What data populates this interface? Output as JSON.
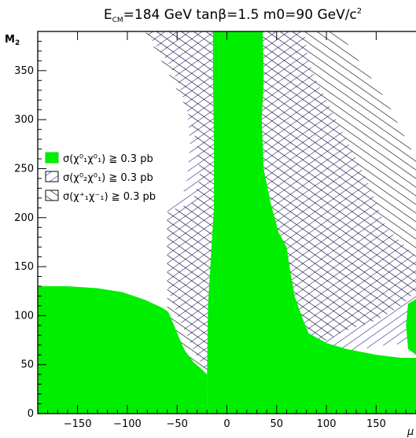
{
  "chart_data": {
    "type": "area",
    "title": "E_CM=184 GeV tanβ=1.5 m0=90 GeV/c²",
    "title_parts": {
      "e": "E",
      "cm_sub": "CM",
      "rest": "=184 GeV tanβ=1.5 m0=90 GeV/c",
      "sup": "2"
    },
    "ylabel": "M₂",
    "ylabel_parts": {
      "main": "M",
      "sub": "2"
    },
    "xlabel": "μ",
    "xlim": [
      -190,
      190
    ],
    "ylim": [
      0,
      390
    ],
    "x_ticks": [
      -150,
      -100,
      -50,
      0,
      50,
      100,
      150
    ],
    "x_tick_labels": [
      "−150",
      "−100",
      "−50",
      "0",
      "50",
      "100",
      "150"
    ],
    "y_ticks": [
      0,
      50,
      100,
      150,
      200,
      250,
      300,
      350
    ],
    "y_tick_labels": [
      "0",
      "50",
      "100",
      "150",
      "200",
      "250",
      "300",
      "350"
    ],
    "colors": {
      "green": "#00ee00",
      "blue": "#2020a0",
      "black": "#000000"
    },
    "legend": {
      "position": "left-middle",
      "entries": [
        {
          "label": "σ(χ⁰₁χ⁰₁) ≧ 0.3 pb",
          "style": "solid-green"
        },
        {
          "label": "σ(χ⁰₂χ⁰₁) ≧ 0.3 pb",
          "style": "hatched-blue"
        },
        {
          "label": "σ(χ⁺₁χ⁻₁) ≧ 0.3 pb",
          "style": "hatched-black"
        }
      ]
    },
    "regions": [
      {
        "name": "chi01-chi01",
        "style": "solid-green",
        "polygons": [
          [
            [
              -190,
              130
            ],
            [
              -160,
              130
            ],
            [
              -130,
              128
            ],
            [
              -105,
              124
            ],
            [
              -82,
              116
            ],
            [
              -65,
              108
            ],
            [
              -59,
              104
            ],
            [
              -53,
              90
            ],
            [
              -47,
              75
            ],
            [
              -42,
              64
            ],
            [
              -33,
              52
            ],
            [
              -25,
              45
            ],
            [
              -20,
              40
            ],
            [
              -20,
              0
            ],
            [
              -190,
              0
            ]
          ],
          [
            [
              -14,
              390
            ],
            [
              36,
              390
            ],
            [
              37,
              340
            ],
            [
              35,
              300
            ],
            [
              37,
              250
            ],
            [
              44,
              215
            ],
            [
              52,
              185
            ],
            [
              60,
              170
            ],
            [
              63,
              150
            ],
            [
              68,
              120
            ],
            [
              75,
              100
            ],
            [
              82,
              82
            ],
            [
              100,
              72
            ],
            [
              120,
              66
            ],
            [
              150,
              60
            ],
            [
              175,
              57
            ],
            [
              190,
              57
            ],
            [
              190,
              0
            ],
            [
              -20,
              0
            ],
            [
              -20,
              36
            ],
            [
              -19,
              110
            ],
            [
              -16,
              160
            ],
            [
              -13,
              210
            ],
            [
              -13,
              280
            ],
            [
              -14,
              340
            ]
          ],
          [
            [
              190,
              42
            ],
            [
              160,
              40
            ],
            [
              140,
              38
            ],
            [
              120,
              35
            ],
            [
              100,
              32
            ],
            [
              85,
              30
            ],
            [
              85,
              0
            ],
            [
              190,
              0
            ]
          ],
          [
            [
              190,
              60
            ],
            [
              182,
              66
            ],
            [
              180,
              90
            ],
            [
              182,
              112
            ],
            [
              190,
              117
            ]
          ]
        ]
      },
      {
        "name": "chi02-chi01",
        "style": "hatched-blue",
        "polygons": [
          [
            [
              -82,
              390
            ],
            [
              -60,
              360
            ],
            [
              -50,
              340
            ],
            [
              -40,
              310
            ],
            [
              -37,
              275
            ],
            [
              -40,
              240
            ],
            [
              -45,
              220
            ],
            [
              -60,
              210
            ],
            [
              -60,
              130
            ],
            [
              -50,
              100
            ],
            [
              -40,
              80
            ],
            [
              -33,
              63
            ],
            [
              -25,
              50
            ],
            [
              -20,
              42
            ],
            [
              -20,
              0
            ],
            [
              85,
              0
            ],
            [
              85,
              30
            ],
            [
              95,
              42
            ],
            [
              100,
              55
            ],
            [
              130,
              65
            ],
            [
              160,
              70
            ],
            [
              190,
              72
            ],
            [
              190,
              160
            ],
            [
              175,
              175
            ],
            [
              160,
              190
            ],
            [
              150,
              215
            ],
            [
              140,
              240
            ],
            [
              125,
              270
            ],
            [
              110,
              300
            ],
            [
              90,
              340
            ],
            [
              82,
              360
            ],
            [
              78,
              390
            ]
          ]
        ]
      },
      {
        "name": "chi1p-chi1m",
        "style": "hatched-black",
        "polygons": [
          [
            [
              -82,
              390
            ],
            [
              -55,
              340
            ],
            [
              -40,
              310
            ],
            [
              -30,
              275
            ],
            [
              -27,
              240
            ],
            [
              -35,
              215
            ],
            [
              -55,
              208
            ],
            [
              -60,
              205
            ],
            [
              -60,
              0
            ],
            [
              190,
              0
            ],
            [
              190,
              30
            ],
            [
              160,
              31
            ],
            [
              130,
              32
            ],
            [
              100,
              33
            ],
            [
              85,
              36
            ],
            [
              78,
              44
            ],
            [
              85,
              60
            ],
            [
              100,
              75
            ],
            [
              120,
              85
            ],
            [
              150,
              95
            ],
            [
              175,
              110
            ],
            [
              190,
              125
            ],
            [
              190,
              260
            ],
            [
              175,
              290
            ],
            [
              160,
              320
            ],
            [
              140,
              350
            ],
            [
              125,
              370
            ],
            [
              115,
              390
            ]
          ],
          [
            [
              -190,
              65
            ],
            [
              -165,
              66
            ],
            [
              -140,
              66
            ],
            [
              -115,
              65
            ],
            [
              -100,
              64
            ],
            [
              -80,
              62
            ],
            [
              -72,
              56
            ],
            [
              -70,
              50
            ],
            [
              -70,
              0
            ],
            [
              -190,
              0
            ]
          ]
        ]
      }
    ]
  }
}
